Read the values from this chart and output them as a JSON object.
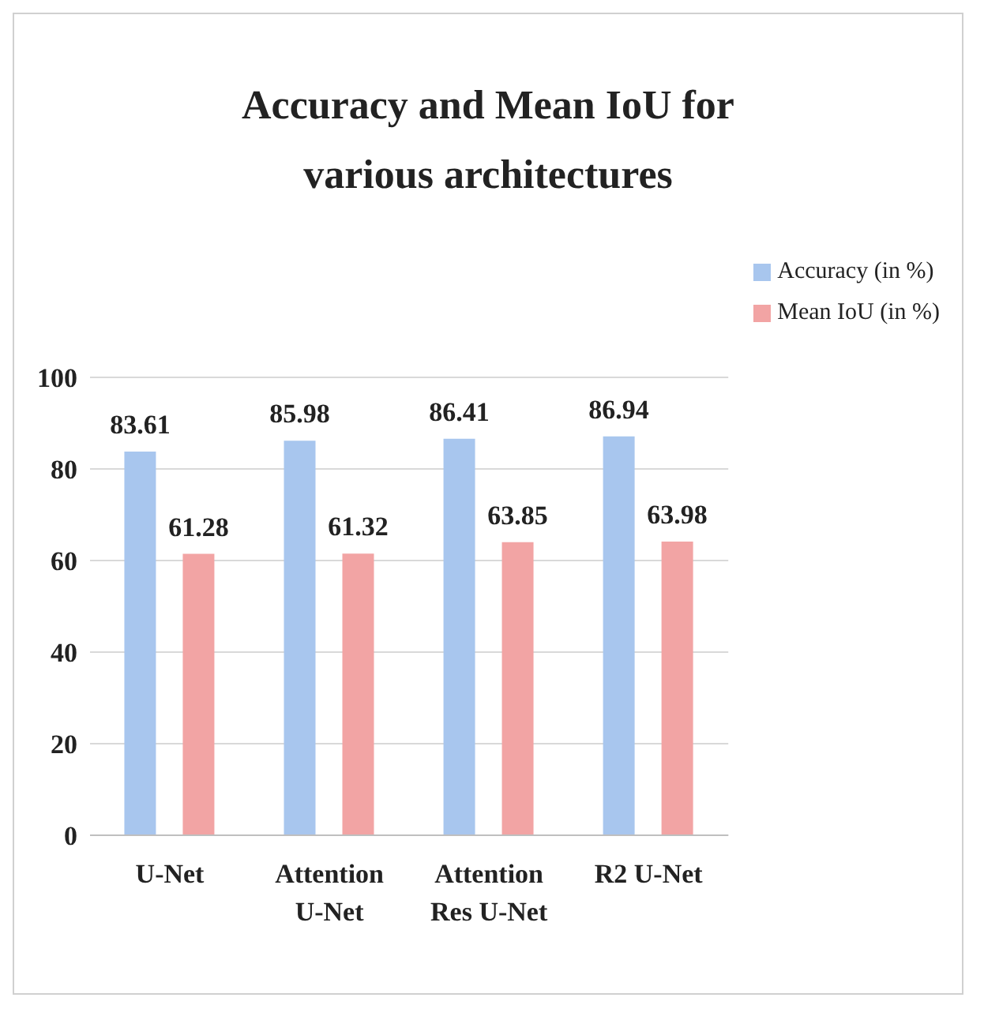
{
  "chart_data": {
    "type": "bar",
    "title": "Accuracy and Mean IoU for various architectures",
    "categories": [
      "U-Net",
      "Attention U-Net",
      "Attention Res U-Net",
      "R2 U-Net"
    ],
    "series": [
      {
        "name": "Accuracy (in %)",
        "color": "#a8c6ee",
        "values": [
          83.61,
          85.98,
          86.41,
          86.94
        ]
      },
      {
        "name": "Mean IoU (in %)",
        "color": "#f2a4a4",
        "values": [
          61.28,
          61.32,
          63.85,
          63.98
        ]
      }
    ],
    "ylim": [
      0,
      100
    ],
    "yticks": [
      0,
      20,
      40,
      60,
      80,
      100
    ],
    "grid": "y",
    "legend": "top right",
    "data_labels": true
  }
}
